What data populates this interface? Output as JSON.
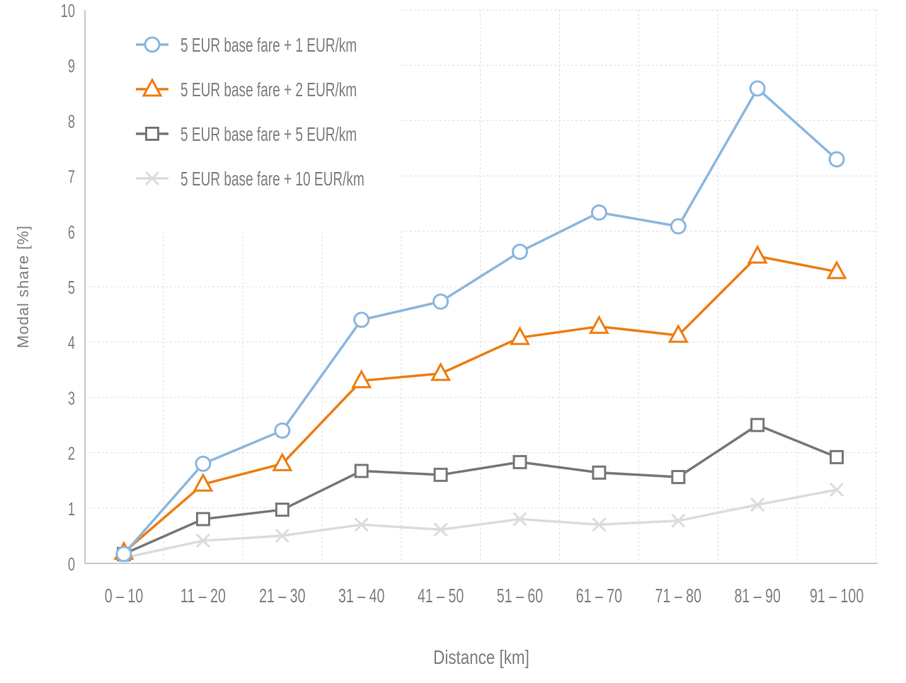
{
  "chart_data": {
    "type": "line",
    "title": "",
    "xlabel": "Distance [km]",
    "ylabel": "Modal share [%]",
    "ylim": [
      0,
      10
    ],
    "yticks": [
      "0",
      "1",
      "2",
      "3",
      "4",
      "5",
      "6",
      "7",
      "8",
      "9",
      "10"
    ],
    "categories": [
      "0 – 10",
      "11 – 20",
      "21 – 30",
      "31 – 40",
      "41 – 50",
      "51 – 60",
      "61 – 70",
      "71 – 80",
      "81 – 90",
      "91 – 100"
    ],
    "grid": true,
    "legend_position": "top-left",
    "series": [
      {
        "name": "5 EUR base fare + 1 EUR/km",
        "marker": "circle",
        "color": "#8ab7e0",
        "values": [
          0.17,
          1.8,
          2.4,
          4.4,
          4.73,
          5.63,
          6.34,
          6.09,
          8.58,
          7.3
        ]
      },
      {
        "name": "5 EUR base fare + 2 EUR/km",
        "marker": "triangle",
        "color": "#ee7d11",
        "values": [
          0.2,
          1.43,
          1.8,
          3.3,
          3.43,
          4.08,
          4.28,
          4.12,
          5.55,
          5.27
        ]
      },
      {
        "name": "5 EUR base fare + 5 EUR/km",
        "marker": "square",
        "color": "#76777b",
        "values": [
          0.17,
          0.8,
          0.97,
          1.67,
          1.6,
          1.83,
          1.64,
          1.56,
          2.5,
          1.92
        ]
      },
      {
        "name": "5 EUR base fare + 10 EUR/km",
        "marker": "x",
        "color": "#dcdcde",
        "values": [
          0.1,
          0.41,
          0.5,
          0.7,
          0.61,
          0.8,
          0.7,
          0.77,
          1.06,
          1.33
        ]
      }
    ]
  }
}
